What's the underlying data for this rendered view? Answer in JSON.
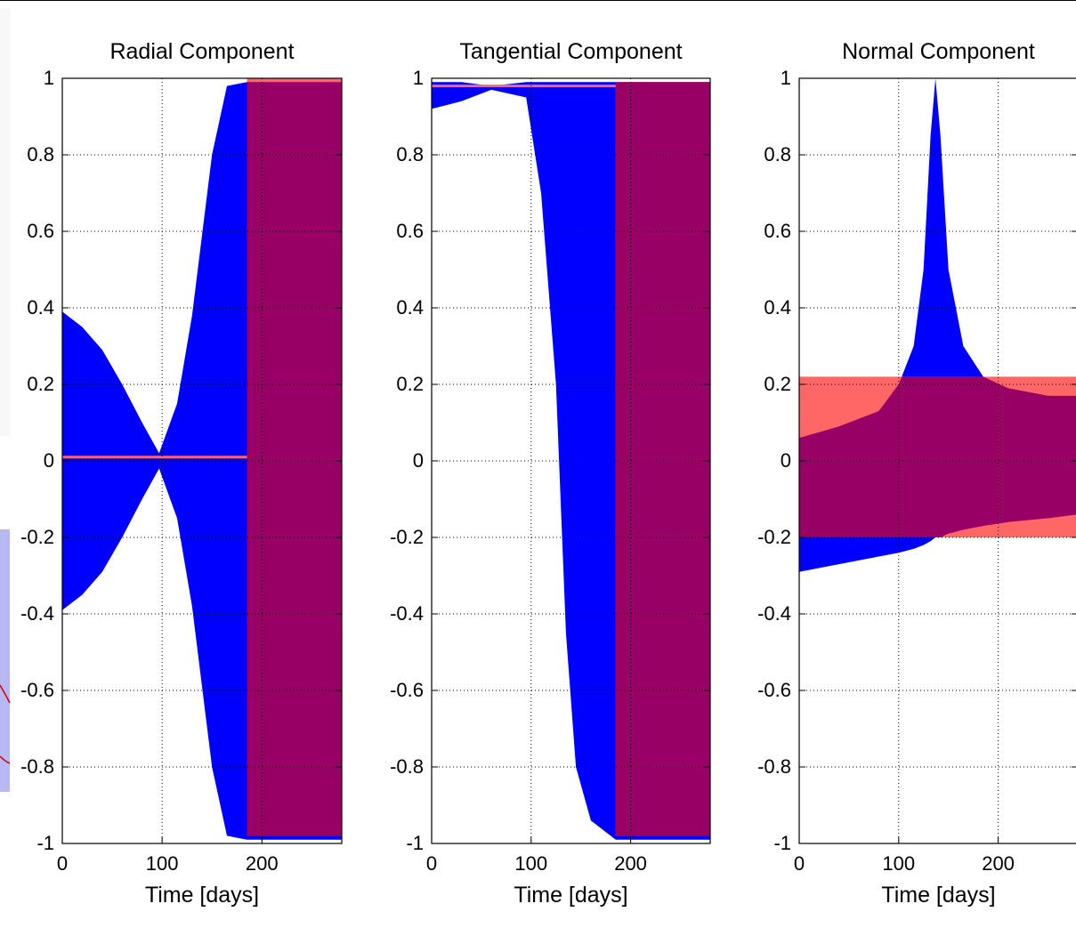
{
  "colors": {
    "upper_envelope": "#0000ff",
    "lower_envelope": "#ff6666",
    "overlap": "#990066",
    "grid": "#000000",
    "background": "#ffffff"
  },
  "chart_data": [
    {
      "type": "area",
      "title": "Radial Component",
      "xlabel": "Time [days]",
      "ylabel": "",
      "xlim": [
        0,
        280
      ],
      "ylim": [
        -1,
        1
      ],
      "xticks": [
        0,
        100,
        200
      ],
      "xtick_labels": [
        "0",
        "100",
        "200"
      ],
      "yticks": [
        -1,
        -0.8,
        -0.6,
        -0.4,
        -0.2,
        0,
        0.2,
        0.4,
        0.6,
        0.8,
        1
      ],
      "ytick_labels": [
        "-1",
        "-0.8",
        "-0.6",
        "-0.4",
        "-0.2",
        "0",
        "0.2",
        "0.4",
        "0.6",
        "0.8",
        "1"
      ],
      "grid": true,
      "series": [
        {
          "color": "blue",
          "kind": "band",
          "x": [
            0,
            20,
            40,
            60,
            80,
            97,
            115,
            130,
            150,
            165,
            185,
            280
          ],
          "y_upper": [
            0.39,
            0.35,
            0.29,
            0.2,
            0.1,
            0.02,
            0.15,
            0.38,
            0.8,
            0.98,
            0.99,
            0.99
          ],
          "y_lower": [
            -0.39,
            -0.35,
            -0.29,
            -0.2,
            -0.1,
            -0.02,
            -0.15,
            -0.38,
            -0.8,
            -0.98,
            -0.99,
            -0.99
          ]
        },
        {
          "color": "red",
          "kind": "line",
          "x": [
            0,
            185
          ],
          "y": [
            0.01,
            0.01
          ]
        },
        {
          "color": "red",
          "kind": "band",
          "x": [
            185,
            280
          ],
          "y_upper": [
            1.0,
            1.0
          ],
          "y_lower": [
            -0.98,
            -0.98
          ]
        }
      ]
    },
    {
      "type": "area",
      "title": "Tangential Component",
      "xlabel": "Time [days]",
      "ylabel": "",
      "xlim": [
        0,
        280
      ],
      "ylim": [
        -1,
        1
      ],
      "xticks": [
        0,
        100,
        200
      ],
      "xtick_labels": [
        "0",
        "100",
        "200"
      ],
      "yticks": [
        -1,
        -0.8,
        -0.6,
        -0.4,
        -0.2,
        0,
        0.2,
        0.4,
        0.6,
        0.8,
        1
      ],
      "ytick_labels": [
        "-1",
        "-0.8",
        "-0.6",
        "-0.4",
        "-0.2",
        "0",
        "0.2",
        "0.4",
        "0.6",
        "0.8",
        "1"
      ],
      "grid": true,
      "series": [
        {
          "color": "blue",
          "kind": "band",
          "x": [
            0,
            30,
            60,
            95,
            110,
            125,
            135,
            145,
            160,
            185,
            280
          ],
          "y_upper": [
            0.99,
            0.99,
            0.98,
            0.99,
            0.99,
            0.99,
            0.99,
            0.99,
            0.99,
            0.99,
            0.99
          ],
          "y_lower": [
            0.92,
            0.94,
            0.97,
            0.95,
            0.7,
            0.2,
            -0.45,
            -0.8,
            -0.94,
            -0.99,
            -0.99
          ]
        },
        {
          "color": "red",
          "kind": "line",
          "x": [
            0,
            185
          ],
          "y": [
            0.98,
            0.98
          ]
        },
        {
          "color": "red",
          "kind": "band",
          "x": [
            185,
            280
          ],
          "y_upper": [
            0.99,
            0.99
          ],
          "y_lower": [
            -0.98,
            -0.98
          ]
        }
      ]
    },
    {
      "type": "area",
      "title": "Normal Component",
      "xlabel": "Time [days]",
      "ylabel": "",
      "xlim": [
        0,
        280
      ],
      "ylim": [
        -1,
        1
      ],
      "xticks": [
        0,
        100,
        200
      ],
      "xtick_labels": [
        "0",
        "100",
        "200"
      ],
      "yticks": [
        -1,
        -0.8,
        -0.6,
        -0.4,
        -0.2,
        0,
        0.2,
        0.4,
        0.6,
        0.8,
        1
      ],
      "ytick_labels": [
        "-1",
        "-0.8",
        "-0.6",
        "-0.4",
        "-0.2",
        "0",
        "0.2",
        "0.4",
        "0.6",
        "0.8",
        "1"
      ],
      "grid": true,
      "series": [
        {
          "color": "blue",
          "kind": "band",
          "x": [
            0,
            40,
            80,
            100,
            115,
            125,
            132,
            137,
            142,
            150,
            165,
            185,
            210,
            250,
            280
          ],
          "y_upper": [
            0.06,
            0.09,
            0.13,
            0.2,
            0.3,
            0.5,
            0.85,
            1.0,
            0.85,
            0.5,
            0.3,
            0.22,
            0.19,
            0.17,
            0.17
          ],
          "y_lower": [
            -0.29,
            -0.27,
            -0.25,
            -0.24,
            -0.23,
            -0.22,
            -0.21,
            -0.2,
            -0.2,
            -0.19,
            -0.18,
            -0.17,
            -0.16,
            -0.15,
            -0.14
          ]
        },
        {
          "color": "red",
          "kind": "band",
          "x": [
            0,
            280
          ],
          "y_upper": [
            0.22,
            0.22
          ],
          "y_lower": [
            -0.2,
            -0.2
          ]
        }
      ]
    }
  ]
}
